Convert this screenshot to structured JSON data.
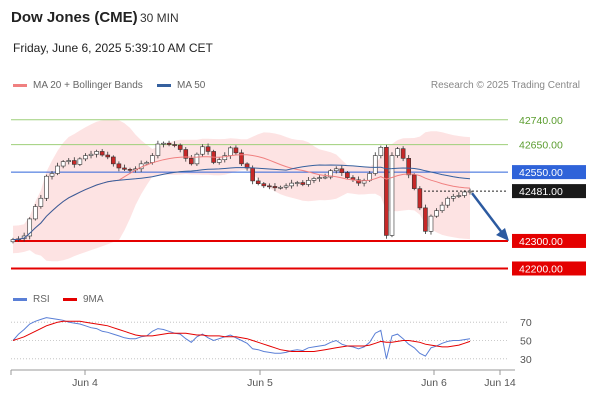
{
  "header": {
    "title": "Dow Jones (CME)",
    "timeframe": "30 MIN",
    "datetime": "Friday, June 6, 2025 5:39:10 AM CET",
    "credit": "Research © 2025 Trading Central"
  },
  "legend": {
    "ma20": "MA 20 + Bollinger Bands",
    "ma50": "MA 50",
    "rsi": "RSI",
    "ma9": "9MA"
  },
  "colors": {
    "resistance_green": "#9ecf7a",
    "pivot_blue": "#2f63d9",
    "support_red": "#e40000",
    "bollinger_fill": "#fde0e0",
    "ma20": "#f08080",
    "ma50": "#35609e",
    "rsi": "#5a7fd6",
    "rsi_ma": "#e40000",
    "candle_up": "#2a7a2a",
    "candle_down": "#c62828",
    "arrow": "#2c5aa0"
  },
  "chart_data": {
    "type": "candlestick",
    "price_levels": [
      {
        "label": "42740.00",
        "value": 42740,
        "kind": "resistance"
      },
      {
        "label": "42650.00",
        "value": 42650,
        "kind": "resistance"
      },
      {
        "label": "42550.00",
        "value": 42550,
        "kind": "pivot"
      },
      {
        "label": "42481.00",
        "value": 42481,
        "kind": "last"
      },
      {
        "label": "42300.00",
        "value": 42300,
        "kind": "support"
      },
      {
        "label": "42200.00",
        "value": 42200,
        "kind": "support"
      }
    ],
    "x_ticks": [
      "Jun 4",
      "Jun 5",
      "Jun 6",
      "Jun 14"
    ],
    "rsi_ticks": [
      "70",
      "50",
      "30"
    ],
    "price_ylim": [
      42140,
      42830
    ],
    "close": [
      42305,
      42308,
      42318,
      42380,
      42425,
      42455,
      42535,
      42545,
      42572,
      42588,
      42592,
      42578,
      42598,
      42610,
      42615,
      42625,
      42612,
      42605,
      42580,
      42565,
      42560,
      42558,
      42562,
      42580,
      42585,
      42610,
      42652,
      42655,
      42650,
      42648,
      42632,
      42600,
      42580,
      42615,
      42642,
      42625,
      42585,
      42595,
      42610,
      42638,
      42620,
      42580,
      42565,
      42518,
      42508,
      42500,
      42498,
      42493,
      42495,
      42500,
      42510,
      42512,
      42505,
      42520,
      42527,
      42530,
      42532,
      42555,
      42562,
      42548,
      42530,
      42522,
      42510,
      42520,
      42545,
      42610,
      42640,
      42320,
      42610,
      42635,
      42600,
      42540,
      42490,
      42420,
      42335,
      42390,
      42410,
      42430,
      42455,
      42462,
      42465,
      42478,
      42481
    ],
    "rsi_values": [
      50,
      57,
      62,
      68,
      71,
      73,
      75,
      74,
      73,
      72,
      70,
      69,
      68,
      66,
      64,
      63,
      60,
      59,
      57,
      55,
      53,
      52,
      52,
      54,
      55,
      60,
      63,
      62,
      60,
      58,
      57,
      52,
      48,
      54,
      57,
      53,
      50,
      52,
      54,
      56,
      53,
      50,
      47,
      41,
      40,
      38,
      37,
      36,
      36,
      37,
      39,
      40,
      39,
      42,
      43,
      44,
      45,
      48,
      50,
      46,
      44,
      43,
      41,
      43,
      48,
      58,
      61,
      30,
      55,
      57,
      52,
      46,
      42,
      36,
      33,
      42,
      44,
      47,
      49,
      50,
      50,
      51,
      52
    ],
    "rsi_ma_values": [
      50,
      52,
      54,
      57,
      60,
      63,
      66,
      68,
      70,
      71,
      71,
      71,
      71,
      70,
      69,
      68,
      67,
      66,
      64,
      62,
      60,
      58,
      56,
      55,
      55,
      55,
      56,
      57,
      58,
      58,
      58,
      58,
      57,
      56,
      56,
      55,
      55,
      55,
      54,
      54,
      54,
      53,
      52,
      50,
      48,
      46,
      44,
      42,
      40,
      39,
      38,
      38,
      38,
      38,
      38,
      39,
      40,
      41,
      42,
      43,
      44,
      44,
      44,
      44,
      45,
      47,
      49,
      48,
      48,
      49,
      50,
      50,
      49,
      48,
      46,
      45,
      44,
      43,
      43,
      44,
      45,
      47,
      49
    ]
  }
}
